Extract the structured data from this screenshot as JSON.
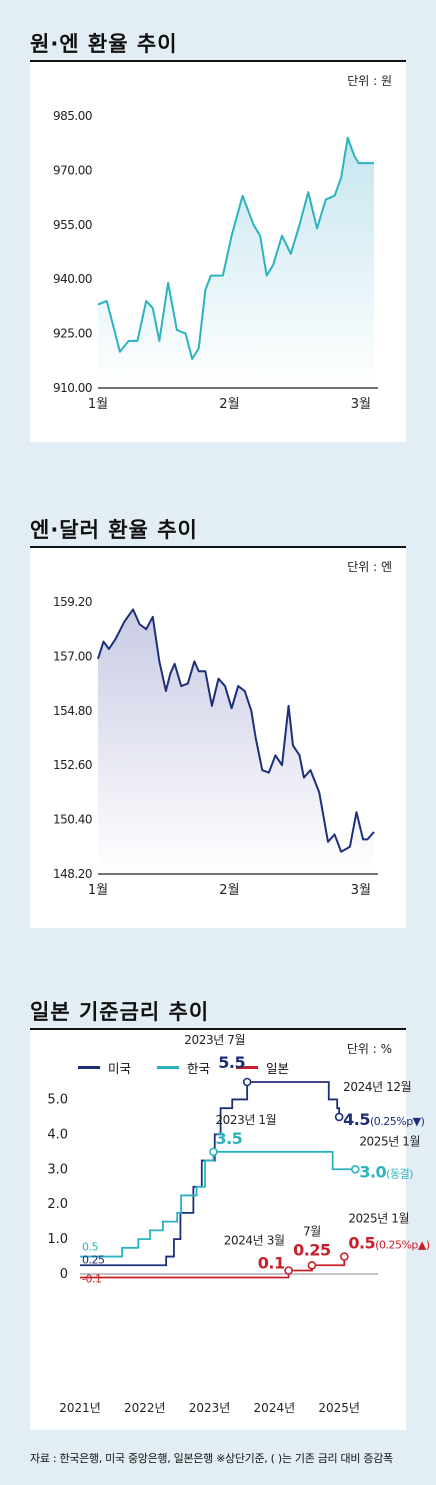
{
  "source_note": "자료 : 한국은행, 미국 중앙은행, 일본은행 ※상단기준, ( )는 기존 금리 대비 증감폭",
  "colors": {
    "teal": "#2bb3c0",
    "navy": "#1e2f7a",
    "red": "#c8202a",
    "teal_fill": "#c6e6ef",
    "navy_fill": "#c9cbe4",
    "background": "#e3eef4"
  },
  "chart_data": [
    {
      "type": "area",
      "title": "원·엔 환율 추이",
      "unit_label": "단위 : 원",
      "ylim": [
        910,
        985
      ],
      "y_ticks": [
        910,
        925,
        940,
        955,
        970,
        985
      ],
      "y_tick_labels": [
        "910.00",
        "925.00",
        "940.00",
        "955.00",
        "970.00",
        "985.00"
      ],
      "x_ticks": [
        0,
        12,
        24
      ],
      "x_tick_labels": [
        "1월",
        "2월",
        "3월"
      ],
      "x": [
        0,
        0.8,
        2.0,
        2.8,
        3.6,
        4.4,
        5.0,
        5.6,
        6.4,
        7.2,
        8.0,
        8.6,
        9.2,
        9.8,
        10.3,
        10.8,
        11.4,
        12.2,
        13.2,
        14.2,
        14.8,
        15.4,
        16.0,
        16.8,
        17.6,
        18.4,
        19.2,
        20.0,
        20.8,
        21.6,
        22.2,
        22.8,
        23.4,
        23.8,
        24.4,
        25.2
      ],
      "y": [
        933,
        934,
        920,
        923,
        923,
        934,
        932,
        923,
        939,
        926,
        925,
        918,
        921,
        937,
        941,
        941,
        941,
        952,
        963,
        955,
        952,
        941,
        944,
        952,
        947,
        955,
        964,
        954,
        962,
        963,
        968,
        979,
        974,
        972,
        972,
        972
      ],
      "series_color": "teal"
    },
    {
      "type": "area",
      "title": "엔·달러 환율 추이",
      "unit_label": "단위 : 엔",
      "ylim": [
        148.2,
        159.2
      ],
      "y_ticks": [
        148.2,
        150.4,
        152.6,
        154.8,
        157.0,
        159.2
      ],
      "y_tick_labels": [
        "148.20",
        "150.40",
        "152.60",
        "154.80",
        "157.00",
        "159.20"
      ],
      "x_ticks": [
        0,
        12,
        24
      ],
      "x_tick_labels": [
        "1월",
        "2월",
        "3월"
      ],
      "x": [
        0,
        0.5,
        1.0,
        1.6,
        2.4,
        3.2,
        3.8,
        4.4,
        5.0,
        5.6,
        6.2,
        6.6,
        7.0,
        7.6,
        8.2,
        8.8,
        9.2,
        9.8,
        10.4,
        11.0,
        11.6,
        12.2,
        12.8,
        13.4,
        14.0,
        14.4,
        15.0,
        15.6,
        16.2,
        16.8,
        17.4,
        17.8,
        18.4,
        18.8,
        19.4,
        20.2,
        21.0,
        21.6,
        22.2,
        23.0,
        23.6,
        24.2,
        24.6,
        25.2
      ],
      "y": [
        156.9,
        157.6,
        157.3,
        157.7,
        158.4,
        158.9,
        158.3,
        158.1,
        158.6,
        156.8,
        155.6,
        156.3,
        156.7,
        155.8,
        155.9,
        156.8,
        156.4,
        156.4,
        155.0,
        156.1,
        155.8,
        154.9,
        155.8,
        155.6,
        154.8,
        153.7,
        152.4,
        152.3,
        153.0,
        152.6,
        155.0,
        153.4,
        153.0,
        152.1,
        152.4,
        151.5,
        149.5,
        149.8,
        149.1,
        149.3,
        150.7,
        149.6,
        149.6,
        149.9
      ],
      "series_color": "navy"
    },
    {
      "type": "line",
      "title": "일본 기준금리 추이",
      "unit_label": "단위 : %",
      "ylim": [
        0,
        5.5
      ],
      "y_ticks": [
        0,
        1,
        2,
        3,
        4,
        5
      ],
      "y_tick_labels": [
        "0",
        "1.0",
        "2.0",
        "3.0",
        "4.0",
        "5.0"
      ],
      "xlim": [
        2021.0,
        2025.6
      ],
      "x_ticks": [
        2021,
        2022,
        2023,
        2024,
        2025
      ],
      "x_tick_labels": [
        "2021년",
        "2022년",
        "2023년",
        "2024년",
        "2025년"
      ],
      "legend_position": "top-left",
      "series": [
        {
          "name": "미국",
          "color": "navy",
          "x": [
            2021.0,
            2022.2,
            2022.33,
            2022.45,
            2022.55,
            2022.75,
            2022.88,
            2023.08,
            2023.17,
            2023.35,
            2023.58,
            2024.72,
            2024.84,
            2024.97,
            2025.0
          ],
          "y": [
            0.25,
            0.25,
            0.5,
            1.0,
            1.75,
            2.5,
            3.25,
            4.0,
            4.75,
            5.0,
            5.5,
            5.5,
            5.0,
            4.75,
            4.5
          ]
        },
        {
          "name": "한국",
          "color": "teal",
          "x": [
            2021.0,
            2021.65,
            2021.9,
            2022.08,
            2022.28,
            2022.5,
            2022.56,
            2022.8,
            2022.93,
            2023.06,
            2024.8,
            2024.9,
            2025.25
          ],
          "y": [
            0.5,
            0.75,
            1.0,
            1.25,
            1.5,
            1.75,
            2.25,
            2.5,
            3.25,
            3.5,
            3.5,
            3.0,
            3.0
          ]
        },
        {
          "name": "일본",
          "color": "red",
          "x": [
            2021.0,
            2024.22,
            2024.58,
            2025.08
          ],
          "y": [
            -0.1,
            0.1,
            0.25,
            0.5
          ]
        }
      ],
      "annotations": [
        {
          "date": "2023년 7월",
          "value": "5.5",
          "x": 2023.58,
          "y": 5.5,
          "series": "미국"
        },
        {
          "date": "2024년 12월",
          "value": "4.5",
          "delta": "(0.25%p▼)",
          "x": 2025.0,
          "y": 4.5,
          "series": "미국"
        },
        {
          "date": "2023년 1월",
          "value": "3.5",
          "x": 2023.06,
          "y": 3.5,
          "series": "한국"
        },
        {
          "date": "2025년 1월",
          "value": "3.0",
          "delta": "(동결)",
          "x": 2025.25,
          "y": 3.0,
          "series": "한국"
        },
        {
          "date": "2024년 3월",
          "value": "0.1",
          "x": 2024.22,
          "y": 0.1,
          "series": "일본"
        },
        {
          "date": "7월",
          "value": "0.25",
          "x": 2024.58,
          "y": 0.25,
          "series": "일본"
        },
        {
          "date": "2025년 1월",
          "value": "0.5",
          "delta": "(0.25%p▲)",
          "x": 2025.08,
          "y": 0.5,
          "series": "일본"
        }
      ],
      "start_labels": [
        {
          "text": "0.5",
          "y": 0.5,
          "series": "한국"
        },
        {
          "text": "0.25",
          "y": 0.25,
          "series": "미국"
        },
        {
          "text": "-0.1",
          "y": -0.1,
          "series": "일본"
        }
      ]
    }
  ]
}
